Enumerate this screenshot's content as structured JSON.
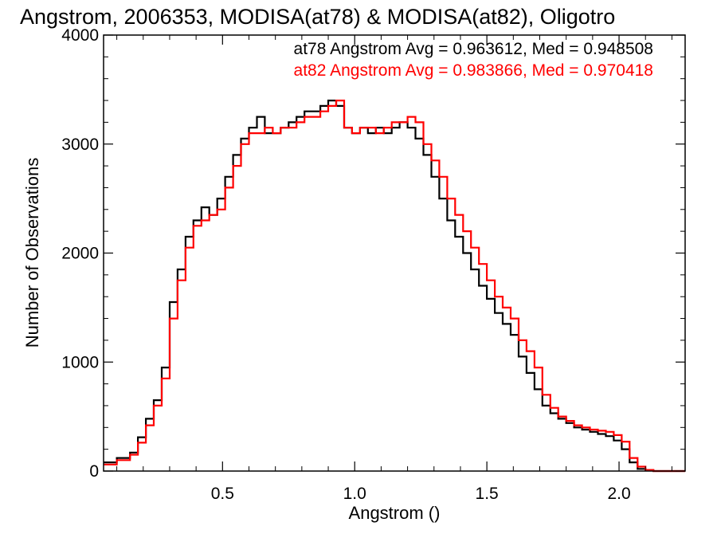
{
  "chart_data": {
    "type": "line",
    "step": true,
    "title": "Angstrom, 2006353, MODISA(at78) & MODISA(at82), Oligotro",
    "xlabel": "Angstrom ()",
    "ylabel": "Number of Observations",
    "xlim": [
      0.05,
      2.25
    ],
    "ylim": [
      0,
      4000
    ],
    "xticks": [
      0.5,
      1.0,
      1.5,
      2.0
    ],
    "xtick_labels": [
      "0.5",
      "1.0",
      "1.5",
      "2.0"
    ],
    "yticks": [
      0,
      1000,
      2000,
      3000,
      4000
    ],
    "ytick_labels": [
      "0",
      "1000",
      "2000",
      "3000",
      "4000"
    ],
    "grid": false,
    "legend_position": "top-right",
    "series": [
      {
        "name": "at78",
        "color": "#000000",
        "legend_text": "at78 Angstrom Avg = 0.963612, Med = 0.948508",
        "x": [
          0.05,
          0.1,
          0.15,
          0.18,
          0.21,
          0.24,
          0.27,
          0.3,
          0.33,
          0.36,
          0.39,
          0.42,
          0.45,
          0.48,
          0.51,
          0.54,
          0.57,
          0.6,
          0.63,
          0.66,
          0.69,
          0.72,
          0.75,
          0.78,
          0.81,
          0.84,
          0.87,
          0.9,
          0.93,
          0.96,
          0.99,
          1.02,
          1.05,
          1.08,
          1.11,
          1.14,
          1.17,
          1.2,
          1.23,
          1.26,
          1.29,
          1.32,
          1.35,
          1.38,
          1.41,
          1.44,
          1.47,
          1.5,
          1.53,
          1.56,
          1.59,
          1.62,
          1.65,
          1.68,
          1.71,
          1.74,
          1.77,
          1.8,
          1.83,
          1.86,
          1.89,
          1.92,
          1.95,
          1.98,
          2.01,
          2.04,
          2.07,
          2.1,
          2.13,
          2.16,
          2.19,
          2.22,
          2.25
        ],
        "y": [
          80,
          120,
          170,
          310,
          480,
          650,
          950,
          1550,
          1850,
          2150,
          2300,
          2420,
          2350,
          2500,
          2700,
          2900,
          3050,
          3150,
          3250,
          3100,
          3100,
          3150,
          3200,
          3250,
          3300,
          3300,
          3350,
          3400,
          3350,
          3150,
          3100,
          3150,
          3100,
          3150,
          3100,
          3150,
          3200,
          3150,
          3050,
          2900,
          2700,
          2500,
          2300,
          2150,
          2000,
          1850,
          1700,
          1580,
          1450,
          1350,
          1250,
          1050,
          900,
          750,
          600,
          530,
          480,
          440,
          400,
          380,
          360,
          340,
          320,
          280,
          200,
          80,
          20,
          5,
          0,
          0,
          0,
          0,
          0
        ]
      },
      {
        "name": "at82",
        "color": "#ff0000",
        "legend_text": "at82 Angstrom Avg = 0.983866, Med = 0.970418",
        "x": [
          0.05,
          0.1,
          0.15,
          0.18,
          0.21,
          0.24,
          0.27,
          0.3,
          0.33,
          0.36,
          0.39,
          0.42,
          0.45,
          0.48,
          0.51,
          0.54,
          0.57,
          0.6,
          0.63,
          0.66,
          0.69,
          0.72,
          0.75,
          0.78,
          0.81,
          0.84,
          0.87,
          0.9,
          0.93,
          0.96,
          0.99,
          1.02,
          1.05,
          1.08,
          1.11,
          1.14,
          1.17,
          1.2,
          1.23,
          1.26,
          1.29,
          1.32,
          1.35,
          1.38,
          1.41,
          1.44,
          1.47,
          1.5,
          1.53,
          1.56,
          1.59,
          1.62,
          1.65,
          1.68,
          1.71,
          1.74,
          1.77,
          1.8,
          1.83,
          1.86,
          1.89,
          1.92,
          1.95,
          1.98,
          2.01,
          2.04,
          2.07,
          2.1,
          2.13,
          2.16,
          2.19,
          2.22,
          2.25
        ],
        "y": [
          60,
          100,
          150,
          260,
          420,
          600,
          850,
          1400,
          1750,
          2050,
          2250,
          2300,
          2350,
          2400,
          2600,
          2800,
          3000,
          3100,
          3100,
          3150,
          3100,
          3150,
          3150,
          3200,
          3250,
          3250,
          3300,
          3350,
          3400,
          3150,
          3100,
          3150,
          3150,
          3100,
          3150,
          3200,
          3200,
          3250,
          3200,
          3000,
          2850,
          2700,
          2500,
          2350,
          2200,
          2050,
          1900,
          1750,
          1600,
          1500,
          1400,
          1200,
          1100,
          950,
          700,
          580,
          500,
          460,
          420,
          400,
          380,
          370,
          360,
          330,
          270,
          120,
          40,
          10,
          0,
          0,
          0,
          0,
          0
        ]
      }
    ]
  }
}
